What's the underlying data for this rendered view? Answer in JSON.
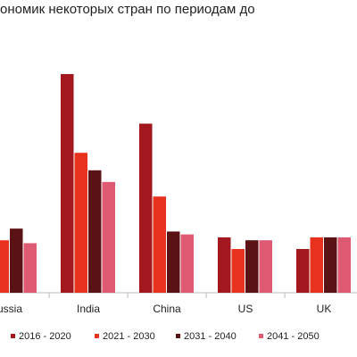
{
  "chart_data": {
    "type": "bar",
    "title": "ономик некоторых стран по периодам до",
    "categories": [
      "ussia",
      "India",
      "China",
      "US",
      "UK"
    ],
    "series": [
      {
        "name": "2016 - 2020",
        "color": "#a3171e",
        "values": [
          null,
          7.5,
          5.8,
          1.9,
          1.5
        ]
      },
      {
        "name": "2021 - 2030",
        "color": "#e8321e",
        "values": [
          1.8,
          4.8,
          3.3,
          1.5,
          1.9
        ]
      },
      {
        "name": "2031 - 2040",
        "color": "#5a1214",
        "values": [
          2.2,
          4.2,
          2.1,
          1.8,
          1.9
        ]
      },
      {
        "name": "2041 - 2050",
        "color": "#de5a72",
        "values": [
          1.7,
          3.8,
          2.0,
          1.8,
          1.9
        ]
      }
    ]
  }
}
